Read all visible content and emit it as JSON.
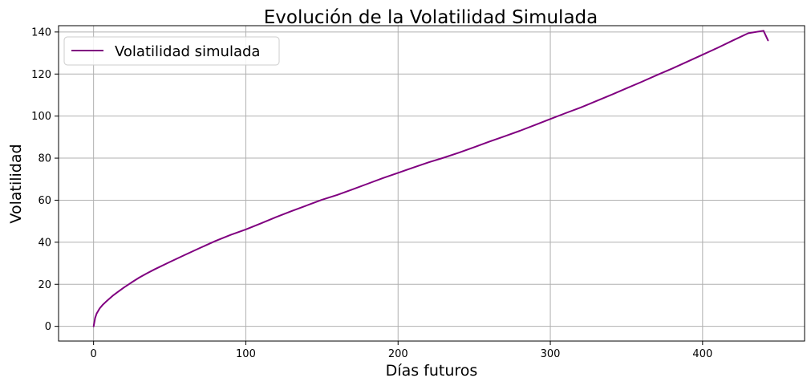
{
  "chart_data": {
    "type": "line",
    "title": "Evolución de la Volatilidad Simulada",
    "xlabel": "Días futuros",
    "ylabel": "Volatilidad",
    "xlim": [
      -23,
      467
    ],
    "ylim": [
      -7,
      143
    ],
    "xticks": [
      0,
      100,
      200,
      300,
      400
    ],
    "yticks": [
      0,
      20,
      40,
      60,
      80,
      100,
      120,
      140
    ],
    "grid": true,
    "legend_position": "top-left",
    "series": [
      {
        "name": "Volatilidad simulada",
        "color": "#800080",
        "x": [
          0,
          1,
          2,
          4,
          6,
          8,
          10,
          13,
          16,
          20,
          25,
          30,
          35,
          40,
          50,
          60,
          70,
          80,
          90,
          100,
          110,
          120,
          130,
          140,
          150,
          160,
          170,
          180,
          190,
          200,
          210,
          220,
          230,
          240,
          250,
          260,
          270,
          280,
          290,
          300,
          310,
          320,
          330,
          340,
          350,
          360,
          370,
          380,
          390,
          400,
          410,
          420,
          430,
          440,
          443
        ],
        "values": [
          0,
          4,
          6,
          8.5,
          10.2,
          11.6,
          12.9,
          14.8,
          16.4,
          18.5,
          20.9,
          23.2,
          25.2,
          27.1,
          30.6,
          34,
          37.3,
          40.6,
          43.5,
          46.1,
          49,
          52,
          54.8,
          57.5,
          60.2,
          62.5,
          65.1,
          67.8,
          70.5,
          73,
          75.5,
          78,
          80.2,
          82.6,
          85.2,
          87.9,
          90.4,
          93,
          95.8,
          98.6,
          101.4,
          104.1,
          107.1,
          110.1,
          113.2,
          116.3,
          119.5,
          122.6,
          125.9,
          129.2,
          132.5,
          136,
          139.4,
          140.6,
          136
        ]
      }
    ]
  }
}
